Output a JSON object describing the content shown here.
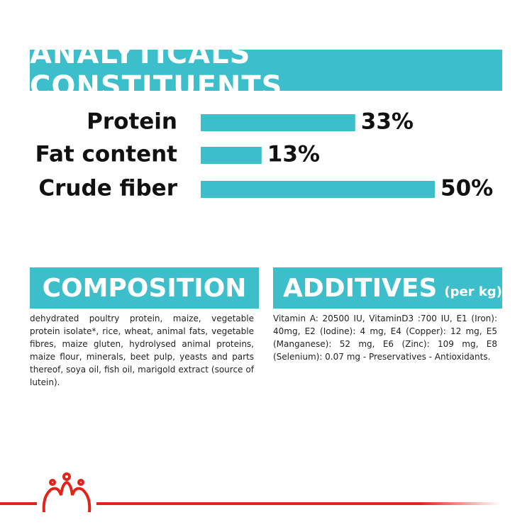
{
  "chart_data": {
    "type": "bar",
    "title": "ANALYTICALS CONSTITUENTS",
    "categories": [
      "Protein",
      "Fat content",
      "Crude fiber"
    ],
    "values": [
      33,
      13,
      50
    ],
    "value_labels": [
      "33%",
      "13%",
      "50%"
    ],
    "color": "#3cbfcb"
  },
  "composition": {
    "title": "COMPOSITION",
    "text": "dehydrated poultry protein, maize, vegetable protein isolate*, rice, wheat, animal fats, vegetable fibres, maize gluten, hydrolysed animal proteins, maize flour, minerals, beet pulp, yeasts and parts thereof, soya oil, fish oil, marigold extract (source of lutein)."
  },
  "additives": {
    "title": "ADDITIVES",
    "unit": "(per kg)",
    "text": "Vitamin A: 20500 IU, VitaminD3 :700 IU, E1 (Iron): 40mg, E2 (Iodine): 4 mg, E4 (Copper): 12 mg, E5 (Manganese): 52 mg, E6 (Zinc): 109 mg, E8 (Selenium): 0.07 mg - Preservatives - Antioxidants."
  }
}
